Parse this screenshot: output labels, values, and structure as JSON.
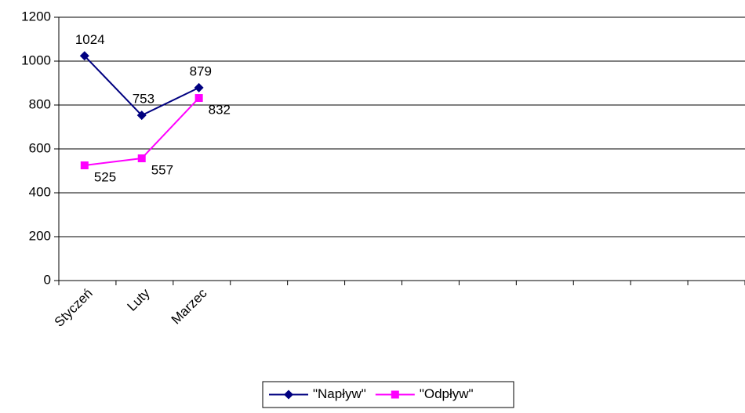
{
  "chart_data": {
    "type": "line",
    "categories": [
      "Styczeń",
      "Luty",
      "Marzec",
      null,
      null,
      null,
      null,
      null,
      null,
      null,
      null,
      null
    ],
    "series": [
      {
        "name": "\"Napływ\"",
        "color": "#000080",
        "marker": "diamond",
        "values": [
          1024,
          753,
          879,
          null,
          null,
          null,
          null,
          null,
          null,
          null,
          null,
          null
        ]
      },
      {
        "name": "\"Odpływ\"",
        "color": "#ff00ff",
        "marker": "square",
        "values": [
          525,
          557,
          832,
          null,
          null,
          null,
          null,
          null,
          null,
          null,
          null,
          null
        ]
      }
    ],
    "ylim": [
      0,
      1200
    ],
    "yticks": [
      0,
      200,
      400,
      600,
      800,
      1000,
      1200
    ],
    "grid": true,
    "legend": "bottom"
  }
}
